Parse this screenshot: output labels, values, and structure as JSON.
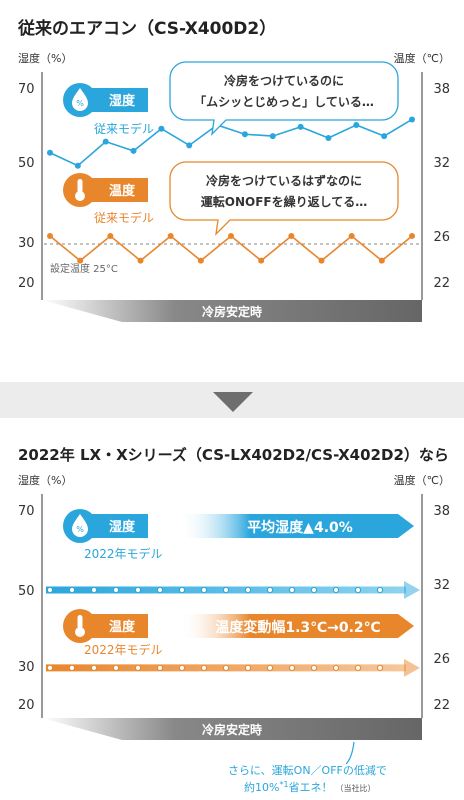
{
  "top": {
    "title": "従来のエアコン（CS-X400D2）",
    "ylabel_left": "湿度（%）",
    "ylabel_right": "温度（℃）",
    "left_ticks": [
      "70",
      "50",
      "30",
      "20"
    ],
    "right_ticks": [
      "38",
      "32",
      "26",
      "22"
    ],
    "humidity_badge": "湿度",
    "temp_badge": "温度",
    "humidity_model": "従来モデル",
    "temp_model": "従来モデル",
    "bubble1": [
      "冷房をつけているのに",
      "「ムシッとじめっと」している…"
    ],
    "bubble2": [
      "冷房をつけているはずなのに",
      "運転ONOFFを繰り返してる…"
    ],
    "setpoint_label": "設定温度 25°C",
    "bar_label": "冷房安定時"
  },
  "bottom": {
    "title": "2022年 LX・Xシリーズ（CS-LX402D2/CS-X402D2）なら",
    "ylabel_left": "湿度（%）",
    "ylabel_right": "温度（℃）",
    "left_ticks": [
      "70",
      "50",
      "30",
      "20"
    ],
    "right_ticks": [
      "38",
      "32",
      "26",
      "22"
    ],
    "humidity_badge": "湿度",
    "temp_badge": "温度",
    "humidity_model": "2022年モデル",
    "temp_model": "2022年モデル",
    "humidity_arrow": "平均湿度▲4.0%",
    "temp_arrow": "温度変動幅1.3℃→0.2℃",
    "bar_label": "冷房安定時",
    "note_line1": "さらに、運転ON／OFFの低減で",
    "note_line2": "約10%",
    "note_sup": "*1",
    "note_line2b": "省エネ！",
    "note_small": "（当社比）"
  },
  "colors": {
    "humidity": "#2aa6dc",
    "temperature": "#e8862c",
    "bar": "#666666"
  },
  "chart_data": [
    {
      "type": "line",
      "title": "従来のエアコン（CS-X400D2）",
      "ylabel": "湿度（%）",
      "y2label": "温度（℃）",
      "ylim": [
        20,
        70
      ],
      "y2lim": [
        22,
        38
      ],
      "xlabel": "冷房安定時",
      "series": [
        {
          "name": "湿度",
          "axis": "left",
          "values": [
            52.5,
            49,
            55.5,
            53,
            59,
            54.5,
            60,
            57.5,
            57,
            59.5,
            56.5,
            60,
            57,
            61.5
          ]
        },
        {
          "name": "温度",
          "axis": "right",
          "values": [
            26,
            25,
            24,
            25,
            26,
            25,
            24,
            25,
            26,
            25,
            24,
            25,
            26,
            25,
            24,
            25,
            26,
            25,
            24,
            25,
            26,
            25,
            24,
            25,
            26
          ]
        }
      ],
      "reference": {
        "label": "設定温度 25°C",
        "value": 25,
        "axis": "right"
      }
    },
    {
      "type": "line",
      "title": "2022年 LX・Xシリーズ（CS-LX402D2/CS-X402D2）なら",
      "ylabel": "湿度（%）",
      "y2label": "温度（℃）",
      "ylim": [
        20,
        70
      ],
      "y2lim": [
        22,
        38
      ],
      "xlabel": "冷房安定時",
      "series": [
        {
          "name": "湿度",
          "axis": "left",
          "values": [
            50,
            50,
            50,
            50,
            50,
            50,
            50,
            50,
            50,
            50,
            50,
            50,
            50,
            50,
            50,
            50
          ]
        },
        {
          "name": "温度",
          "axis": "right",
          "values": [
            25.2,
            25.2,
            25.2,
            25.2,
            25.2,
            25.2,
            25.2,
            25.2,
            25.2,
            25.2,
            25.2,
            25.2,
            25.2,
            25.2,
            25.2,
            25.2
          ]
        }
      ]
    }
  ]
}
